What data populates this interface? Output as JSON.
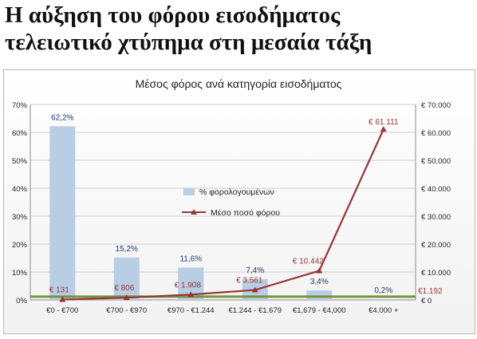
{
  "headline": {
    "line1": "Η αύξηση του φόρου εισοδήματος",
    "line2": "τελειωτικό χτύπημα στη μεσαία τάξη"
  },
  "chart_data": {
    "type": "bar",
    "title": "Μέσος φόρος ανά κατηγορία εισοδήματος",
    "categories": [
      "€0 - €700",
      "€700 - €970",
      "€970 - €1.244",
      "€1.244 - €1.679",
      "€1,679 - €4,000",
      "€4.000 +"
    ],
    "series": [
      {
        "name": "% φορολογουμένων",
        "chart": "bar",
        "axis": "left",
        "color": "#b9cde5",
        "values": [
          62.2,
          15.2,
          11.6,
          7.4,
          3.4,
          0.2
        ],
        "labels": [
          "62,2%",
          "15,2%",
          "11,6%",
          "7,4%",
          "3,4%",
          "0,2%"
        ],
        "label_color": "#1f3864"
      },
      {
        "name": "Μέσο ποσό φόρου",
        "chart": "line",
        "axis": "right",
        "color": "#953735",
        "values": [
          131,
          806,
          1908,
          3561,
          10442,
          61111
        ],
        "labels": [
          "€ 131",
          "€ 806",
          "€ 1.908",
          "€ 3.561",
          "€ 10.442",
          "€ 61.111"
        ]
      }
    ],
    "reference_line": {
      "value": 1192,
      "label": "€1.192",
      "color": "#77933c"
    },
    "left_axis": {
      "ylim": [
        0,
        70
      ],
      "ticks": [
        "0%",
        "10%",
        "20%",
        "30%",
        "40%",
        "50%",
        "60%",
        "70%"
      ]
    },
    "right_axis": {
      "ylim": [
        0,
        70000
      ],
      "ticks": [
        "€ 0",
        "€ 10.000",
        "€ 20.000",
        "€ 30.000",
        "€ 40.000",
        "€ 50.000",
        "€ 60.000",
        "€ 70.000"
      ]
    },
    "legend_position": "center"
  }
}
